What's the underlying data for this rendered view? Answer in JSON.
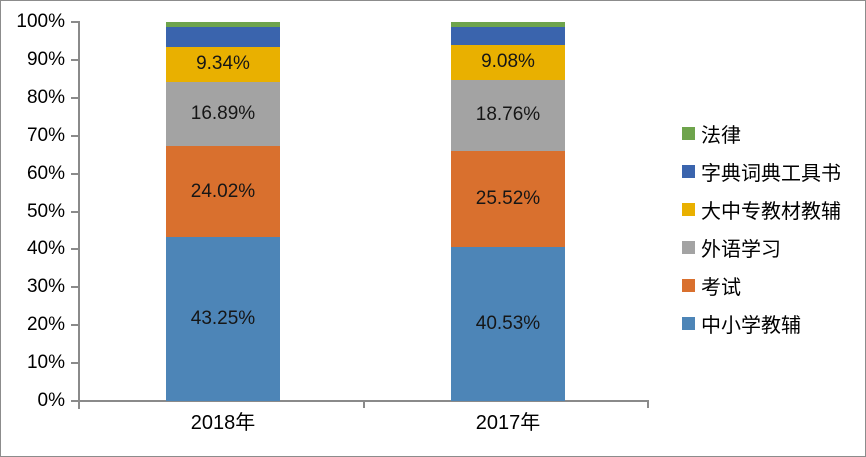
{
  "chart_data": {
    "type": "bar",
    "subtype": "stacked-100-percent-column",
    "title": "",
    "categories": [
      "2018年",
      "2017年"
    ],
    "series": [
      {
        "name": "中小学教辅",
        "color": "#4D85B7",
        "values": [
          43.25,
          40.53
        ],
        "labels": [
          "43.25%",
          "40.53%"
        ]
      },
      {
        "name": "考试",
        "color": "#D9702E",
        "values": [
          24.02,
          25.52
        ],
        "labels": [
          "24.02%",
          "25.52%"
        ]
      },
      {
        "name": "外语学习",
        "color": "#A3A3A3",
        "values": [
          16.89,
          18.76
        ],
        "labels": [
          "16.89%",
          "18.76%"
        ]
      },
      {
        "name": "大中专教材教辅",
        "color": "#E9B000",
        "values": [
          9.34,
          9.08
        ],
        "labels": [
          "9.34%",
          "9.08%"
        ]
      },
      {
        "name": "字典词典工具书",
        "color": "#3A64AD",
        "values": [
          5.1,
          4.71
        ],
        "labels": [
          null,
          null
        ]
      },
      {
        "name": "法律",
        "color": "#6EA44C",
        "values": [
          1.4,
          1.4
        ],
        "labels": [
          null,
          null
        ]
      }
    ],
    "y_axis": {
      "min": 0,
      "max": 100,
      "tick_labels": [
        "0%",
        "10%",
        "20%",
        "30%",
        "40%",
        "50%",
        "60%",
        "70%",
        "80%",
        "90%",
        "100%"
      ]
    },
    "legend": {
      "position": "right",
      "items": [
        {
          "label": "法律",
          "color": "#6EA44C"
        },
        {
          "label": "字典词典工具书",
          "color": "#3A64AD"
        },
        {
          "label": "大中专教材教辅",
          "color": "#E9B000"
        },
        {
          "label": "外语学习",
          "color": "#A3A3A3"
        },
        {
          "label": "考试",
          "color": "#D9702E"
        },
        {
          "label": "中小学教辅",
          "color": "#4D85B7"
        }
      ]
    },
    "gridlines": false,
    "background": "#FFFFFF"
  }
}
